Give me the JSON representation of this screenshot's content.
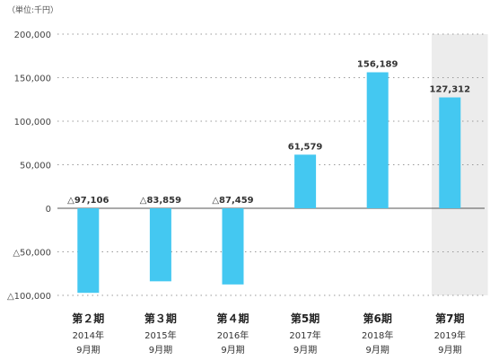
{
  "unit_label": "（単位:千円）",
  "chart_data": {
    "type": "bar",
    "title": "",
    "xlabel": "",
    "ylabel": "",
    "ylim": [
      -100000,
      200000
    ],
    "yticks": [
      200000,
      150000,
      100000,
      50000,
      0,
      -50000,
      -100000
    ],
    "ytick_labels": [
      "200,000",
      "150,000",
      "100,000",
      "50,000",
      "0",
      "△50,000",
      "△100,000"
    ],
    "categories": [
      "第２期",
      "第３期",
      "第４期",
      "第5期",
      "第6期",
      "第7期"
    ],
    "years": [
      "2014年",
      "2015年",
      "2016年",
      "2017年",
      "2018年",
      "2019年"
    ],
    "months": [
      "9月期",
      "9月期",
      "9月期",
      "9月期",
      "9月期",
      "9月期"
    ],
    "values": [
      -97106,
      -83859,
      -87459,
      61579,
      156189,
      127312
    ],
    "value_labels": [
      "△97,106",
      "△83,859",
      "△87,459",
      "61,579",
      "156,189",
      "127,312"
    ],
    "highlight_index": 5,
    "bar_color": "#44c8f1",
    "highlight_bg": "#ececec",
    "grid": true
  }
}
